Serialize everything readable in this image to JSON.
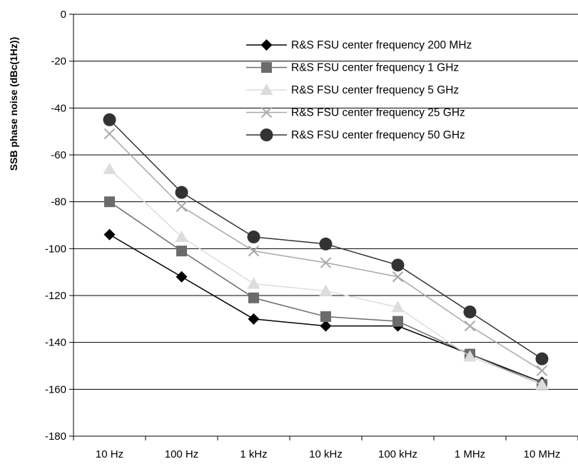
{
  "chart_data": {
    "type": "line",
    "title": "",
    "xlabel": "",
    "ylabel": "SSB phase noise (dBc(1Hz))",
    "categories": [
      "10 Hz",
      "100 Hz",
      "1 kHz",
      "10 kHz",
      "100 kHz",
      "1 MHz",
      "10 MHz"
    ],
    "ylim": [
      -180,
      0
    ],
    "yticks": [
      0,
      -20,
      -40,
      -60,
      -80,
      -100,
      -120,
      -140,
      -160,
      -180
    ],
    "grid": "horizontal",
    "legend_position": "top-right",
    "series": [
      {
        "name": "R&S FSU center frequency 200 MHz",
        "marker": "diamond",
        "color": "#000000",
        "values": [
          -94,
          -112,
          -130,
          -133,
          -133,
          -145,
          -157
        ]
      },
      {
        "name": "R&S FSU center frequency 1 GHz",
        "marker": "square",
        "color": "#6b6b6b",
        "values": [
          -80,
          -101,
          -121,
          -129,
          -131,
          -145,
          -158
        ]
      },
      {
        "name": "R&S FSU center frequency 5 GHz",
        "marker": "triangle",
        "color": "#dcdcdc",
        "values": [
          -66,
          -95,
          -115,
          -118,
          -125,
          -146,
          -158
        ]
      },
      {
        "name": "R&S FSU center frequency 25 GHz",
        "marker": "x",
        "color": "#a8a8a8",
        "values": [
          -51,
          -82,
          -101,
          -106,
          -112,
          -133,
          -152
        ]
      },
      {
        "name": "R&S FSU center frequency 50 GHz",
        "marker": "circle",
        "color": "#333333",
        "values": [
          -45,
          -76,
          -95,
          -98,
          -107,
          -127,
          -147
        ]
      }
    ]
  }
}
